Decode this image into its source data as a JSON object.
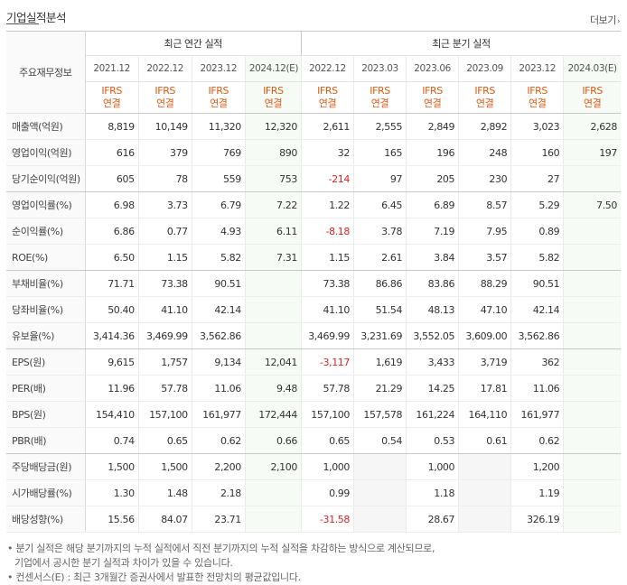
{
  "title": "기업실적분석",
  "more_label": "더보기",
  "label_header": "주요재무정보",
  "groups": {
    "annual": "최근 연간 실적",
    "quarterly": "최근 분기 실적"
  },
  "periods": [
    "2021.12",
    "2022.12",
    "2023.12",
    "2024.12(E)",
    "2022.12",
    "2023.03",
    "2023.06",
    "2023.09",
    "2023.12",
    "2024.03(E)"
  ],
  "ifrs": {
    "line1": "IFRS",
    "line2": "연결"
  },
  "rows": [
    {
      "label": "매출액(억원)",
      "values": [
        "8,819",
        "10,149",
        "11,320",
        "12,320",
        "2,611",
        "2,555",
        "2,849",
        "2,892",
        "3,023",
        "2,628"
      ]
    },
    {
      "label": "영업이익(억원)",
      "values": [
        "616",
        "379",
        "769",
        "890",
        "32",
        "165",
        "196",
        "248",
        "160",
        "197"
      ]
    },
    {
      "label": "당기순이익(억원)",
      "values": [
        "605",
        "78",
        "559",
        "753",
        "-214",
        "97",
        "205",
        "230",
        "27",
        ""
      ]
    },
    {
      "label": "영업이익률(%)",
      "values": [
        "6.98",
        "3.73",
        "6.79",
        "7.22",
        "1.22",
        "6.45",
        "6.89",
        "8.57",
        "5.29",
        "7.50"
      ]
    },
    {
      "label": "순이익률(%)",
      "values": [
        "6.86",
        "0.77",
        "4.93",
        "6.11",
        "-8.18",
        "3.78",
        "7.19",
        "7.95",
        "0.89",
        ""
      ]
    },
    {
      "label": "ROE(%)",
      "values": [
        "6.50",
        "1.15",
        "5.82",
        "7.31",
        "1.15",
        "2.61",
        "3.84",
        "3.57",
        "5.82",
        ""
      ]
    },
    {
      "label": "부채비율(%)",
      "values": [
        "71.71",
        "73.38",
        "90.51",
        "",
        "73.38",
        "86.86",
        "83.86",
        "88.29",
        "90.51",
        ""
      ]
    },
    {
      "label": "당좌비율(%)",
      "values": [
        "50.40",
        "41.10",
        "42.14",
        "",
        "41.10",
        "51.54",
        "48.13",
        "47.10",
        "42.14",
        ""
      ]
    },
    {
      "label": "유보율(%)",
      "values": [
        "3,414.36",
        "3,469.99",
        "3,562.86",
        "",
        "3,469.99",
        "3,231.69",
        "3,552.05",
        "3,609.00",
        "3,562.86",
        ""
      ]
    },
    {
      "label": "EPS(원)",
      "values": [
        "9,615",
        "1,757",
        "9,134",
        "12,041",
        "-3,117",
        "1,619",
        "3,433",
        "3,719",
        "362",
        ""
      ]
    },
    {
      "label": "PER(배)",
      "values": [
        "11.96",
        "57.78",
        "11.06",
        "9.48",
        "57.78",
        "21.29",
        "14.25",
        "17.81",
        "11.06",
        ""
      ]
    },
    {
      "label": "BPS(원)",
      "values": [
        "154,410",
        "157,100",
        "161,977",
        "172,444",
        "157,100",
        "157,578",
        "161,224",
        "164,110",
        "161,977",
        ""
      ]
    },
    {
      "label": "PBR(배)",
      "values": [
        "0.74",
        "0.65",
        "0.62",
        "0.66",
        "0.65",
        "0.54",
        "0.53",
        "0.61",
        "0.62",
        ""
      ]
    },
    {
      "label": "주당배당금(원)",
      "values": [
        "1,500",
        "1,500",
        "2,200",
        "2,100",
        "1,000",
        "",
        "1,000",
        "",
        "1,200",
        ""
      ]
    },
    {
      "label": "시가배당률(%)",
      "values": [
        "1.30",
        "1.48",
        "2.18",
        "",
        "0.99",
        "",
        "1.18",
        "",
        "1.19",
        ""
      ]
    },
    {
      "label": "배당성향(%)",
      "values": [
        "15.56",
        "84.07",
        "23.71",
        "",
        "-31.58",
        "",
        "28.67",
        "",
        "326.19",
        ""
      ]
    }
  ],
  "notes": [
    "• 분기 실적은 해당 분기까지의 누적 실적에서 직전 분기까지의 누적 실적을 차감하는 방식으로 계산되므로,",
    "기업에서 공시한 분기 실적과 차이가 있을 수 있습니다.",
    "• 컨센서스(E) : 최근 3개월간 증권사에서 발표한 전망치의 평균값입니다."
  ],
  "colors": {
    "ifrs": "#e05a12",
    "negative": "#e02222",
    "estimate_bg": "#f6fbf6"
  }
}
